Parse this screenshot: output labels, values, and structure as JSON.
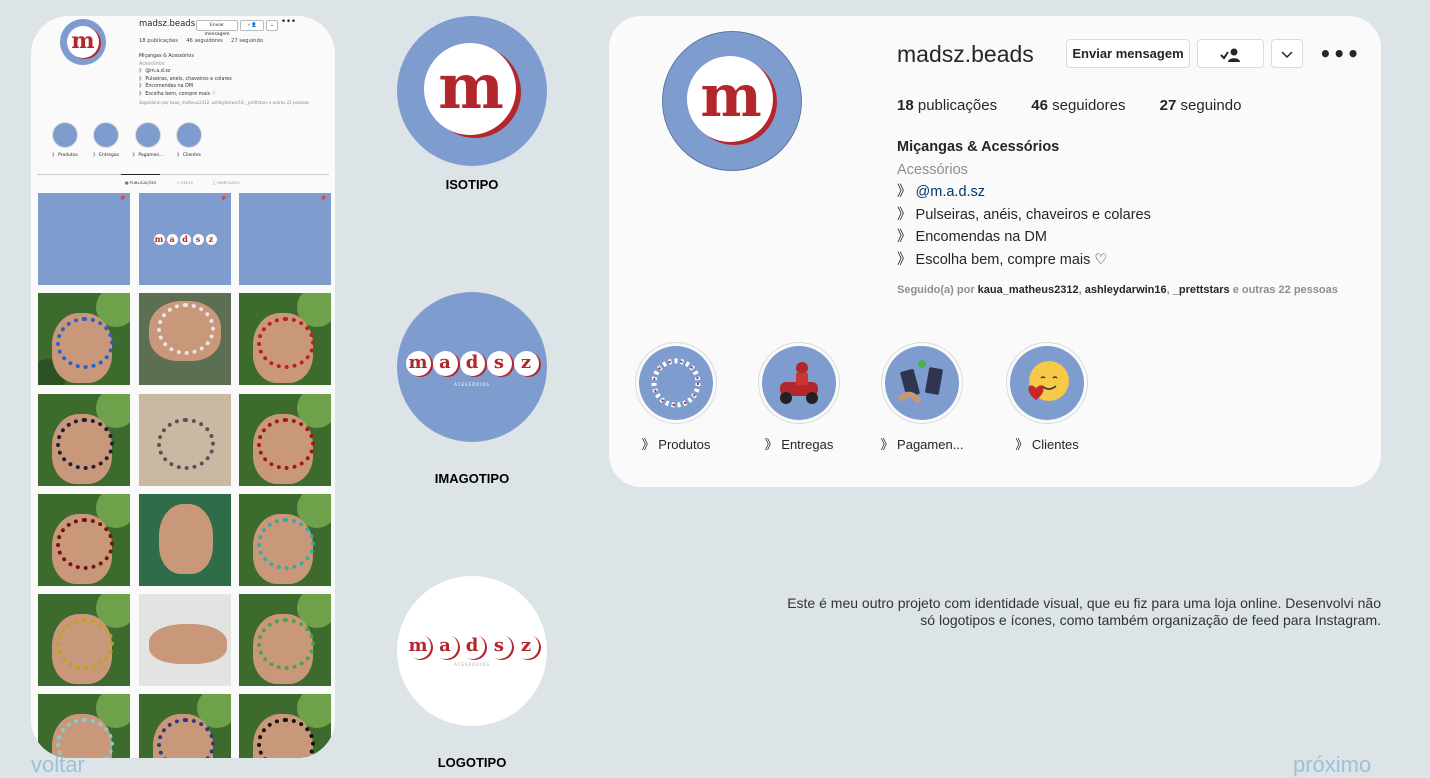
{
  "profile": {
    "username": "madsz.beads",
    "message_button": "Enviar mensagem",
    "more_icon": "•••",
    "stats": {
      "posts_count": "18",
      "posts_label": "publicações",
      "followers_count": "46",
      "followers_label": "seguidores",
      "following_count": "27",
      "following_label": "seguindo"
    },
    "bio": {
      "name": "Miçangas & Acessórios",
      "category": "Acessórios",
      "line1_prefix": "》",
      "line1_link": "@m.a.d.sz",
      "line2": "》 Pulseiras, anéis, chaveiros e colares",
      "line3": "》 Encomendas na DM",
      "line4": "》 Escolha bem, compre mais ♡"
    },
    "followed_by": {
      "prefix": "Seguido(a) por",
      "user1": "kaua_matheus2312",
      "user2": "ashleydarwin16",
      "user3": "_prettstars",
      "suffix": "e outras 22 pessoas"
    },
    "highlights": [
      "》 Produtos",
      "》 Entregas",
      "》 Pagamen...",
      "》 Clientes"
    ]
  },
  "phone": {
    "username": "madsz.beads",
    "message_button": "Enviar mensagem",
    "stats": {
      "posts": "18 publicações",
      "followers": "46 seguidores",
      "following": "27 seguindo"
    },
    "bio": {
      "name": "Miçangas & Acessórios",
      "category": "Acessórios",
      "line1": "》 @m.a.d.sz",
      "line2": "》 Pulseiras, anéis, chaveiros e colares",
      "line3": "》 Encomendas na DM",
      "line4": "》 Escolha bem, compre mais ♡",
      "followed": "Seguido(a) por kaua_matheus2312, ashleydarwin16, _prettstars e outras 22 pessoas"
    },
    "highlights": [
      "》 Produtos",
      "》 Entregas",
      "》 Pagamen...",
      "》 Clientes"
    ],
    "tabs": [
      "▦ PUBLICAÇÕES",
      "▷ REELS",
      "◫ MARCADOS"
    ],
    "feed_word": [
      "m",
      "a",
      "d",
      "s",
      "z"
    ],
    "feed_subtitle": "ACESSÓRIOS"
  },
  "brand": {
    "isotipo_letter": "m",
    "wordmark": [
      "m",
      "a",
      "d",
      "s",
      "z"
    ],
    "tagline": "ACESSÓRIOS",
    "captions": {
      "isotipo": "ISOTIPO",
      "imagotipo": "IMAGOTIPO",
      "logotipo": "LOGOTIPO"
    }
  },
  "description": "Este é meu outro projeto com identidade visual, que eu fiz para uma loja online. Desenvolvi não só logotipos e ícones, como também organização de feed para Instagram.",
  "nav": {
    "back": "voltar",
    "next": "próximo"
  },
  "colors": {
    "brand_blue": "#7f9ccf",
    "brand_red": "#b3262b",
    "background": "#dde4e8"
  }
}
